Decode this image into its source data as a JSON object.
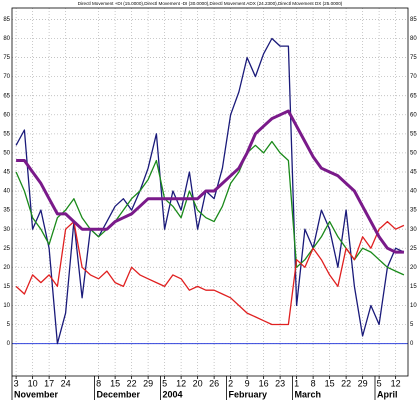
{
  "chart_data": {
    "type": "line",
    "title": "Directl Movement +DI (15.0000),Directl Movement -DI (30.0000),Directl Movement ADX (24.2300),Directl Movement DX (25.0000)",
    "categories": [
      "3",
      null,
      "10",
      null,
      "17",
      null,
      "24",
      null,
      null,
      null,
      "8",
      null,
      "15",
      null,
      "22",
      null,
      "29",
      null,
      "5",
      null,
      "12",
      null,
      "20",
      null,
      "26",
      null,
      "2",
      null,
      "9",
      null,
      "16",
      null,
      "23",
      null,
      "1",
      null,
      "8",
      null,
      "15",
      null,
      "22",
      null,
      "29",
      null,
      "5",
      null,
      "12",
      null
    ],
    "category_groups": [
      "November",
      null,
      null,
      null,
      null,
      null,
      null,
      null,
      null,
      null,
      "December",
      null,
      null,
      null,
      null,
      null,
      null,
      null,
      "2004",
      null,
      null,
      null,
      null,
      null,
      null,
      null,
      "February",
      null,
      null,
      null,
      null,
      null,
      null,
      null,
      "March",
      null,
      null,
      null,
      null,
      null,
      null,
      null,
      null,
      null,
      "April",
      null,
      null,
      null
    ],
    "series": [
      {
        "color": "#1a1a7a",
        "width": 1.3,
        "values": [
          52,
          56,
          30,
          35,
          25,
          0,
          8,
          32,
          12,
          30,
          28,
          32,
          36,
          38,
          35,
          40,
          46,
          55,
          30,
          40,
          35,
          45,
          30,
          40,
          38,
          46,
          60,
          66,
          75,
          70,
          76,
          80,
          78,
          78,
          10,
          30,
          25,
          35,
          30,
          20,
          35,
          15,
          2,
          10,
          5,
          20,
          25,
          24
        ]
      },
      {
        "color": "#1a8a1a",
        "width": 1.3,
        "values": [
          45,
          40,
          33,
          30,
          26,
          33,
          35,
          38,
          33,
          30,
          28,
          30,
          32,
          35,
          38,
          40,
          43,
          48,
          38,
          36,
          33,
          40,
          35,
          33,
          32,
          36,
          42,
          45,
          50,
          52,
          50,
          53,
          50,
          48,
          20,
          22,
          25,
          28,
          32,
          28,
          25,
          22,
          25,
          24,
          22,
          20,
          19,
          18
        ]
      },
      {
        "color": "#e02020",
        "width": 1.3,
        "values": [
          15,
          13,
          18,
          16,
          18,
          15,
          30,
          32,
          20,
          18,
          17,
          19,
          16,
          15,
          20,
          18,
          17,
          16,
          15,
          18,
          17,
          14,
          15,
          14,
          14,
          13,
          12,
          10,
          8,
          7,
          6,
          5,
          5,
          5,
          22,
          20,
          25,
          22,
          18,
          15,
          25,
          22,
          28,
          25,
          30,
          32,
          30,
          31
        ]
      },
      {
        "color": "#7a1a8a",
        "width": 3,
        "values": [
          48,
          48,
          45,
          42,
          38,
          34,
          34,
          32,
          30,
          30,
          30,
          30,
          32,
          33,
          34,
          36,
          38,
          38,
          38,
          38,
          38,
          38,
          38,
          40,
          40,
          42,
          44,
          46,
          50,
          55,
          57,
          59,
          60,
          61,
          57,
          53,
          49,
          46,
          45,
          44,
          42,
          40,
          36,
          32,
          28,
          25,
          24,
          24
        ]
      }
    ],
    "ylim": [
      -8.5,
      88
    ],
    "yticks": [
      0,
      5,
      10,
      15,
      20,
      25,
      30,
      35,
      40,
      45,
      50,
      55,
      60,
      65,
      70,
      75,
      80,
      85
    ],
    "zero_line_color": "#3344dd",
    "grid": true
  }
}
